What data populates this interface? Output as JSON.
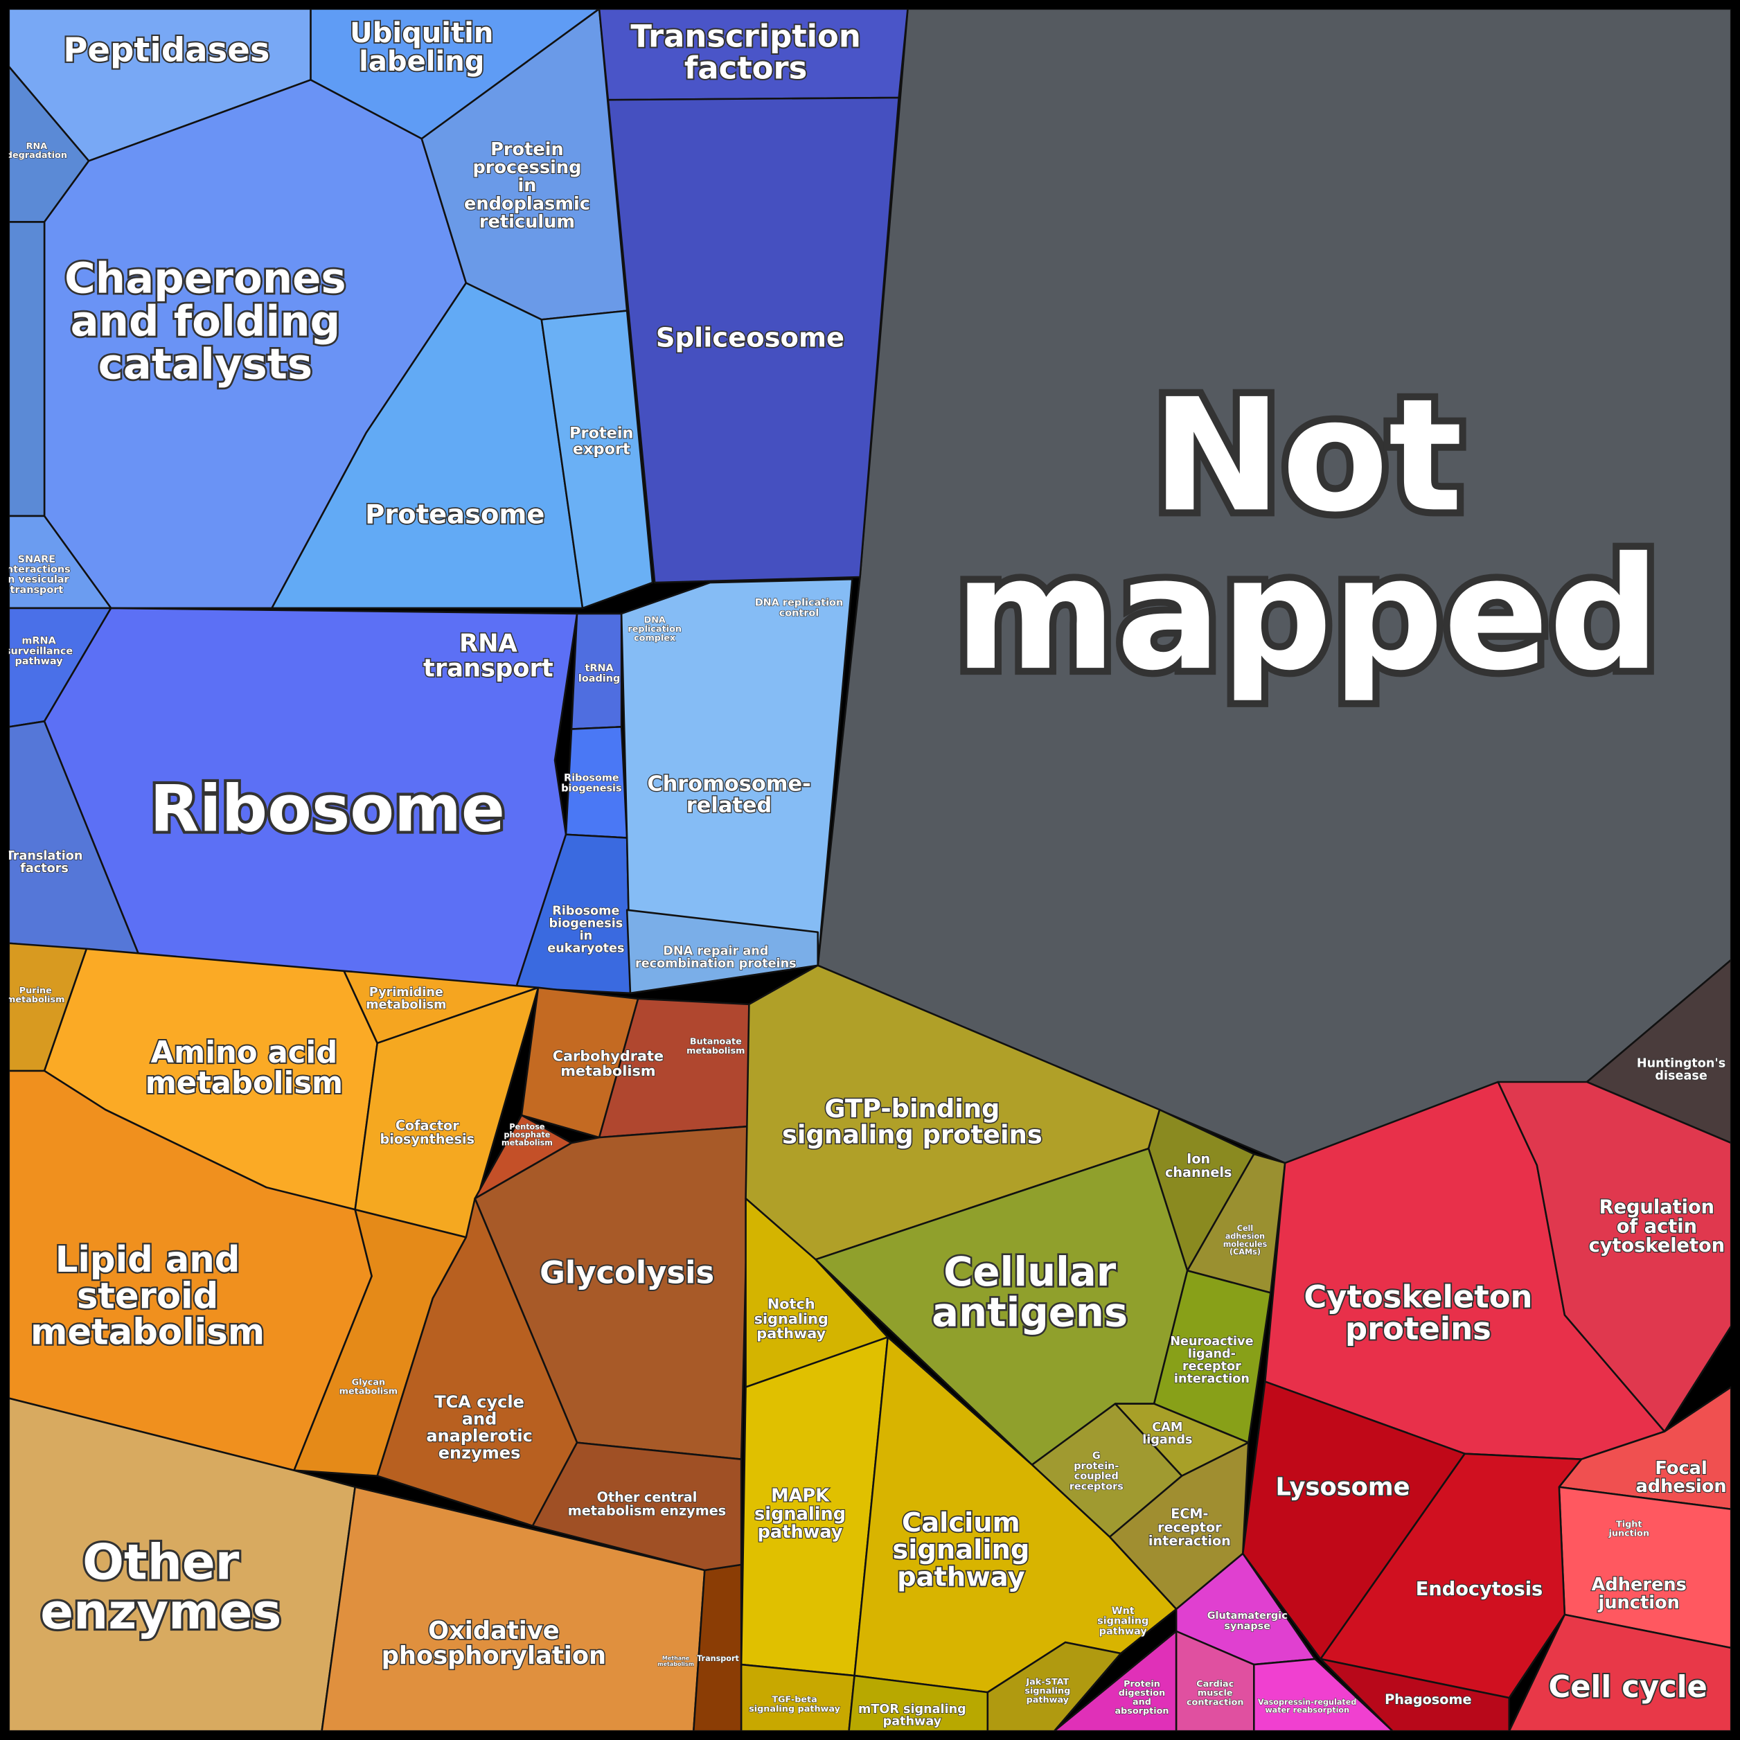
{
  "regions": [
    {
      "label": [
        "Not",
        "mapped"
      ]
    },
    {
      "label": [
        "Peptidases"
      ]
    },
    {
      "label": [
        "Ubiquitin",
        "labeling"
      ]
    },
    {
      "label": [
        "Transcription",
        "factors"
      ]
    },
    {
      "label": [
        "RNA",
        "degradation"
      ]
    },
    {
      "label": [
        "Protein",
        "processing",
        "in",
        "endoplasmic",
        "reticulum"
      ]
    },
    {
      "label": [
        "Chaperones",
        "and folding",
        "catalysts"
      ]
    },
    {
      "label": [
        "Spliceosome"
      ]
    },
    {
      "label": [
        "Protein",
        "export"
      ]
    },
    {
      "label": [
        "Proteasome"
      ]
    },
    {
      "label": [
        "SNARE",
        "interactions",
        "in vesicular",
        "transport"
      ]
    },
    {
      "label": [
        "DNA",
        "replication",
        "complex"
      ]
    },
    {
      "label": [
        "DNA replication",
        "control"
      ]
    },
    {
      "label": [
        "mRNA",
        "surveillance",
        "pathway"
      ]
    },
    {
      "label": [
        "RNA",
        "transport"
      ]
    },
    {
      "label": [
        "tRNA",
        "loading"
      ]
    },
    {
      "label": [
        "Chromosome-",
        "related"
      ]
    },
    {
      "label": [
        "Ribosome",
        "biogenesis"
      ]
    },
    {
      "label": [
        "Ribosome"
      ]
    },
    {
      "label": [
        "Translation",
        "factors"
      ]
    },
    {
      "label": [
        "Ribosome",
        "biogenesis",
        "in",
        "eukaryotes"
      ]
    },
    {
      "label": [
        "DNA repair and",
        "recombination proteins"
      ]
    },
    {
      "label": [
        "Purine",
        "metabolism"
      ]
    },
    {
      "label": [
        "Pyrimidine",
        "metabolism"
      ]
    },
    {
      "label": [
        "Amino acid",
        "metabolism"
      ]
    },
    {
      "label": [
        "Carbohydrate",
        "metabolism"
      ]
    },
    {
      "label": [
        "Butanoate",
        "metabolism"
      ]
    },
    {
      "label": [
        "GTP-binding",
        "signaling proteins"
      ]
    },
    {
      "label": [
        "Huntington's",
        "disease"
      ]
    },
    {
      "label": [
        "Cofactor",
        "biosynthesis"
      ]
    },
    {
      "label": [
        "Pentose",
        "phosphate",
        "metabolism"
      ]
    },
    {
      "label": [
        "Ion",
        "channels"
      ]
    },
    {
      "label": [
        "Regulation",
        "of actin",
        "cytoskeleton"
      ]
    },
    {
      "label": [
        "Cell",
        "adhesion",
        "molecules",
        "(CAMs)"
      ]
    },
    {
      "label": [
        "Lipid and",
        "steroid",
        "metabolism"
      ]
    },
    {
      "label": [
        "Glycolysis"
      ]
    },
    {
      "label": [
        "Cellular",
        "antigens"
      ]
    },
    {
      "label": [
        "Notch",
        "signaling",
        "pathway"
      ]
    },
    {
      "label": [
        "Cytoskeleton",
        "proteins"
      ]
    },
    {
      "label": [
        "Neuroactive",
        "ligand-",
        "receptor",
        "interaction"
      ]
    },
    {
      "label": [
        "Glycan",
        "metabolism"
      ]
    },
    {
      "label": [
        "TCA cycle",
        "and",
        "anaplerotic",
        "enzymes"
      ]
    },
    {
      "label": [
        "CAM",
        "ligands"
      ]
    },
    {
      "label": [
        "G",
        "protein-",
        "coupled",
        "receptors"
      ]
    },
    {
      "label": [
        "Lysosome"
      ]
    },
    {
      "label": [
        "Focal",
        "adhesion"
      ]
    },
    {
      "label": [
        "MAPK",
        "signaling",
        "pathway"
      ]
    },
    {
      "label": [
        "Calcium",
        "signaling",
        "pathway"
      ]
    },
    {
      "label": [
        "Other central",
        "metabolism enzymes"
      ]
    },
    {
      "label": [
        "ECM-",
        "receptor",
        "interaction"
      ]
    },
    {
      "label": [
        "Tight",
        "junction"
      ]
    },
    {
      "label": [
        "Other",
        "enzymes"
      ]
    },
    {
      "label": [
        "Endocytosis"
      ]
    },
    {
      "label": [
        "Adherens",
        "junction"
      ]
    },
    {
      "label": [
        "Glutamatergic",
        "synapse"
      ]
    },
    {
      "label": [
        "Oxidative",
        "phosphorylation"
      ]
    },
    {
      "label": [
        "Wnt",
        "signaling",
        "pathway"
      ]
    },
    {
      "label": [
        "Methane",
        "metabolism"
      ]
    },
    {
      "label": [
        "Transport"
      ]
    },
    {
      "label": [
        "Cell cycle"
      ]
    },
    {
      "label": [
        "Jak-STAT",
        "signaling",
        "pathway"
      ]
    },
    {
      "label": [
        "TGF-beta",
        "signaling pathway"
      ]
    },
    {
      "label": [
        "Protein",
        "digestion",
        "and",
        "absorption"
      ]
    },
    {
      "label": [
        "Cardiac",
        "muscle",
        "contraction"
      ]
    },
    {
      "label": [
        "Vasopressin-regulated",
        "water reabsorption"
      ]
    },
    {
      "label": [
        "Phagosome"
      ]
    },
    {
      "label": [
        "mTOR signaling",
        "pathway"
      ]
    }
  ]
}
